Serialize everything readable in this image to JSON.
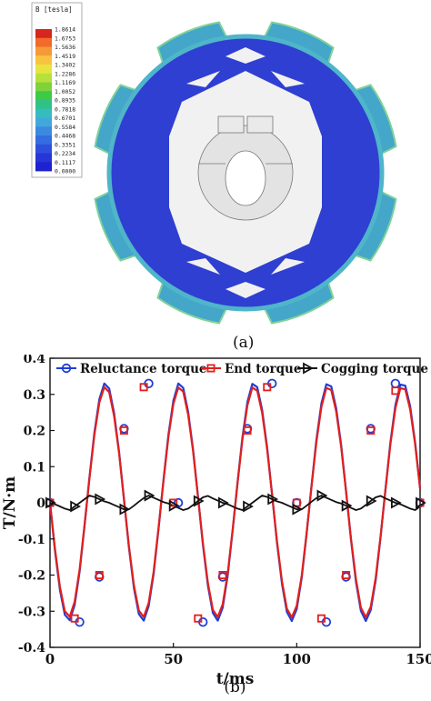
{
  "panel_a": {
    "caption": "(a)",
    "colorbar": {
      "title": "B [tesla]",
      "ticks": [
        "1.8614",
        "1.6753",
        "1.5636",
        "1.4519",
        "1.3402",
        "1.2286",
        "1.1169",
        "1.0052",
        "0.8935",
        "0.7818",
        "0.6701",
        "0.5584",
        "0.4468",
        "0.3351",
        "0.2234",
        "0.1117",
        "0.0000"
      ],
      "colors": [
        "#d7261e",
        "#f26b2b",
        "#f59a36",
        "#f8c440",
        "#e8e43f",
        "#b8e03a",
        "#7fd33a",
        "#3ec946",
        "#30c185",
        "#35bcbf",
        "#42a8dc",
        "#3c8ae0",
        "#356ce0",
        "#2d50dc",
        "#2736d8",
        "#1f22cf"
      ]
    },
    "colors": {
      "stator": "#2f3fd2",
      "stator_edge": "#4fb5c9",
      "pole": "#44a6c9",
      "pole_hot": "#7fd19a",
      "bore": "#f1f1f1",
      "shaft": "#e3e3e3"
    }
  },
  "panel_b": {
    "caption": "(b)",
    "chart_data": {
      "type": "line",
      "xlabel": "t/ms",
      "ylabel": "T/N·m",
      "xlim": [
        0,
        150
      ],
      "ylim": [
        -0.4,
        0.4
      ],
      "x_ticks": [
        "0",
        "50",
        "100",
        "150"
      ],
      "y_ticks": [
        "-0.4",
        "-0.3",
        "-0.2",
        "-0.1",
        "0",
        "0.1",
        "0.2",
        "0.3",
        "0.4"
      ],
      "grid": false,
      "legend_position": "top",
      "series": [
        {
          "name": "Reluctance torque",
          "color": "#1f3fd6",
          "marker": "circle",
          "x": [
            0,
            2,
            4,
            6,
            8,
            10,
            12,
            14,
            16,
            18,
            20,
            22,
            24,
            26,
            28,
            30,
            32,
            34,
            36,
            38,
            40,
            42,
            44,
            46,
            48,
            50,
            52,
            54,
            56,
            58,
            60,
            62,
            64,
            66,
            68,
            70,
            72,
            74,
            76,
            78,
            80,
            82,
            84,
            86,
            88,
            90,
            92,
            94,
            96,
            98,
            100,
            102,
            104,
            106,
            108,
            110,
            112,
            114,
            116,
            118,
            120,
            122,
            124,
            126,
            128,
            130,
            132,
            134,
            136,
            138,
            140,
            142,
            144,
            146,
            148,
            150
          ],
          "values": [
            0.0,
            -0.131,
            -0.241,
            -0.31,
            -0.325,
            -0.283,
            -0.19,
            -0.063,
            0.071,
            0.194,
            0.287,
            0.33,
            0.316,
            0.248,
            0.14,
            0.008,
            -0.124,
            -0.236,
            -0.308,
            -0.326,
            -0.286,
            -0.196,
            -0.071,
            0.063,
            0.188,
            0.283,
            0.33,
            0.318,
            0.252,
            0.146,
            0.016,
            -0.117,
            -0.23,
            -0.305,
            -0.326,
            -0.29,
            -0.202,
            -0.078,
            0.055,
            0.181,
            0.279,
            0.329,
            0.32,
            0.257,
            0.153,
            0.024,
            -0.11,
            -0.224,
            -0.302,
            -0.327,
            -0.294,
            -0.208,
            -0.086,
            0.047,
            0.175,
            0.275,
            0.328,
            0.322,
            0.262,
            0.16,
            0.032,
            -0.102,
            -0.219,
            -0.299,
            -0.327,
            -0.297,
            -0.214,
            -0.094,
            0.039,
            0.168,
            0.271,
            0.327,
            0.324,
            0.267,
            0.166,
            0.04
          ],
          "marker_x": [
            0,
            12,
            20,
            30,
            40,
            52,
            62,
            70,
            80,
            90,
            100,
            112,
            120,
            130,
            140,
            150
          ],
          "marker_values": [
            0.0,
            -0.33,
            -0.205,
            0.205,
            0.33,
            0.0,
            -0.33,
            -0.205,
            0.205,
            0.33,
            0.0,
            -0.33,
            -0.205,
            0.205,
            0.33,
            0.0
          ]
        },
        {
          "name": "End torque",
          "color": "#e0201e",
          "marker": "square",
          "x": [
            0,
            2,
            4,
            6,
            8,
            10,
            12,
            14,
            16,
            18,
            20,
            22,
            24,
            26,
            28,
            30,
            32,
            34,
            36,
            38,
            40,
            42,
            44,
            46,
            48,
            50,
            52,
            54,
            56,
            58,
            60,
            62,
            64,
            66,
            68,
            70,
            72,
            74,
            76,
            78,
            80,
            82,
            84,
            86,
            88,
            90,
            92,
            94,
            96,
            98,
            100,
            102,
            104,
            106,
            108,
            110,
            112,
            114,
            116,
            118,
            120,
            122,
            124,
            126,
            128,
            130,
            132,
            134,
            136,
            138,
            140,
            142,
            144,
            146,
            148,
            150
          ],
          "values": [
            0.0,
            -0.126,
            -0.233,
            -0.3,
            -0.315,
            -0.274,
            -0.184,
            -0.061,
            0.068,
            0.188,
            0.278,
            0.32,
            0.306,
            0.24,
            0.136,
            0.008,
            -0.12,
            -0.229,
            -0.298,
            -0.316,
            -0.277,
            -0.19,
            -0.069,
            0.061,
            0.182,
            0.274,
            0.319,
            0.308,
            0.244,
            0.142,
            0.015,
            -0.113,
            -0.223,
            -0.296,
            -0.316,
            -0.281,
            -0.196,
            -0.076,
            0.053,
            0.175,
            0.27,
            0.319,
            0.31,
            0.249,
            0.148,
            0.023,
            -0.106,
            -0.217,
            -0.293,
            -0.317,
            -0.285,
            -0.202,
            -0.084,
            0.045,
            0.169,
            0.266,
            0.318,
            0.312,
            0.253,
            0.155,
            0.031,
            -0.099,
            -0.212,
            -0.29,
            -0.317,
            -0.288,
            -0.207,
            -0.091,
            0.038,
            0.163,
            0.262,
            0.317,
            0.314,
            0.258,
            0.161,
            0.039
          ],
          "marker_x": [
            0,
            10,
            20,
            30,
            38,
            50,
            60,
            70,
            80,
            88,
            100,
            110,
            120,
            130,
            140,
            150
          ],
          "marker_values": [
            0.0,
            -0.32,
            -0.2,
            0.2,
            0.32,
            0.0,
            -0.32,
            -0.2,
            0.2,
            0.32,
            0.0,
            -0.32,
            -0.2,
            0.2,
            0.31,
            0.0
          ]
        },
        {
          "name": "Cogging torque",
          "color": "#111111",
          "marker": "triangle-right",
          "x": [
            0,
            2,
            4,
            6,
            8,
            10,
            12,
            14,
            16,
            18,
            20,
            22,
            24,
            26,
            28,
            30,
            32,
            34,
            36,
            38,
            40,
            42,
            44,
            46,
            48,
            50,
            52,
            54,
            56,
            58,
            60,
            62,
            64,
            66,
            68,
            70,
            72,
            74,
            76,
            78,
            80,
            82,
            84,
            86,
            88,
            90,
            92,
            94,
            96,
            98,
            100,
            102,
            104,
            106,
            108,
            110,
            112,
            114,
            116,
            118,
            120,
            122,
            124,
            126,
            128,
            130,
            132,
            134,
            136,
            138,
            140,
            142,
            144,
            146,
            148,
            150
          ],
          "values": [
            0.0,
            -0.004,
            -0.01,
            -0.016,
            -0.02,
            -0.01,
            0.0,
            0.01,
            0.02,
            0.016,
            0.01,
            0.004,
            0.0,
            -0.006,
            -0.012,
            -0.018,
            -0.018,
            -0.008,
            0.003,
            0.013,
            0.02,
            0.014,
            0.008,
            0.002,
            -0.002,
            -0.008,
            -0.014,
            -0.02,
            -0.016,
            -0.006,
            0.005,
            0.015,
            0.019,
            0.012,
            0.006,
            0.0,
            -0.004,
            -0.01,
            -0.016,
            -0.02,
            -0.01,
            0.0,
            0.01,
            0.02,
            0.016,
            0.01,
            0.004,
            0.0,
            -0.006,
            -0.012,
            -0.018,
            -0.018,
            -0.008,
            0.003,
            0.013,
            0.02,
            0.014,
            0.008,
            0.002,
            -0.002,
            -0.008,
            -0.014,
            -0.02,
            -0.016,
            -0.006,
            0.005,
            0.015,
            0.019,
            0.012,
            0.006,
            0.0,
            -0.004,
            -0.01,
            -0.016,
            -0.02,
            -0.01
          ],
          "marker_x": [
            0,
            10,
            20,
            30,
            40,
            50,
            60,
            70,
            80,
            90,
            100,
            110,
            120,
            130,
            140,
            150
          ],
          "marker_values": [
            0.0,
            -0.01,
            0.01,
            -0.018,
            0.02,
            -0.008,
            0.005,
            0.0,
            -0.01,
            0.01,
            -0.018,
            0.02,
            -0.008,
            0.005,
            0.0,
            0.0
          ]
        }
      ]
    }
  }
}
